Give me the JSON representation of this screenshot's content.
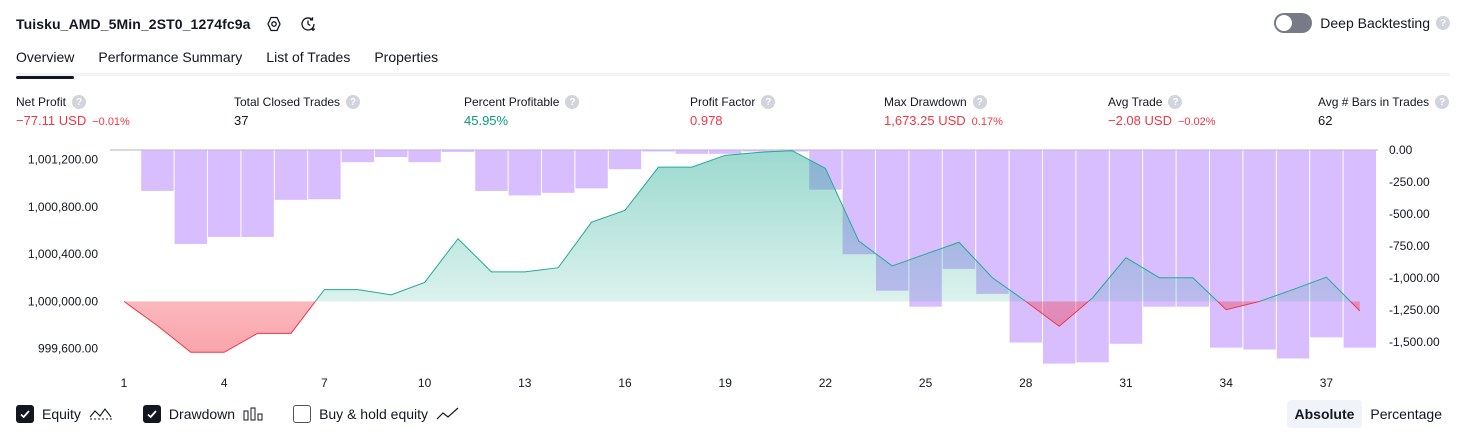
{
  "header": {
    "strategy_name": "Tuisku_AMD_5Min_2ST0_1274fc9a",
    "deep_backtesting_label": "Deep Backtesting",
    "help_glyph": "?"
  },
  "tabs": [
    {
      "label": "Overview",
      "active": true
    },
    {
      "label": "Performance Summary",
      "active": false
    },
    {
      "label": "List of Trades",
      "active": false
    },
    {
      "label": "Properties",
      "active": false
    }
  ],
  "metrics": [
    {
      "label": "Net Profit",
      "value": "−77.11 USD",
      "pct": "−0.01%",
      "tone": "neg"
    },
    {
      "label": "Total Closed Trades",
      "value": "37",
      "pct": "",
      "tone": "neutral"
    },
    {
      "label": "Percent Profitable",
      "value": "45.95%",
      "pct": "",
      "tone": "pos"
    },
    {
      "label": "Profit Factor",
      "value": "0.978",
      "pct": "",
      "tone": "neg"
    },
    {
      "label": "Max Drawdown",
      "value": "1,673.25 USD",
      "pct": "0.17%",
      "tone": "neg"
    },
    {
      "label": "Avg Trade",
      "value": "−2.08 USD",
      "pct": "−0.02%",
      "tone": "neg"
    },
    {
      "label": "Avg # Bars in Trades",
      "value": "62",
      "pct": "",
      "tone": "neutral"
    }
  ],
  "colors": {
    "profit_line": "#22ab94",
    "loss_line": "#f23645",
    "drawdown_bar": "#d1b3ff",
    "text_neg": "#f23645",
    "text_pos": "#089981"
  },
  "chart_data": {
    "type": "area",
    "x_ticks": [
      "1",
      "4",
      "7",
      "10",
      "13",
      "16",
      "19",
      "22",
      "25",
      "28",
      "31",
      "34",
      "37"
    ],
    "left_axis": {
      "ticks": [
        "1,001,200.00",
        "1,000,800.00",
        "1,000,400.00",
        "1,000,000.00",
        "999,600.00"
      ],
      "range": [
        999420,
        1001280
      ],
      "baseline": 1000000
    },
    "right_axis": {
      "ticks": [
        "0.00",
        "-250.00",
        "-500.00",
        "-750.00",
        "-1,000.00",
        "-1,250.00",
        "-1,500.00"
      ],
      "range": [
        -1720,
        0
      ]
    },
    "series": [
      {
        "name": "Equity",
        "axis": "left",
        "x": [
          1,
          2,
          3,
          4,
          5,
          6,
          7,
          8,
          9,
          10,
          11,
          12,
          13,
          14,
          15,
          16,
          17,
          18,
          19,
          20,
          21,
          22,
          23,
          24,
          25,
          26,
          27,
          28,
          29,
          30,
          31,
          32,
          33,
          34,
          35,
          36,
          37,
          38
        ],
        "values": [
          1000000,
          999795,
          999570,
          999570,
          999730,
          999730,
          1000100,
          1000100,
          1000055,
          1000160,
          1000530,
          1000250,
          1000250,
          1000285,
          1000670,
          1000770,
          1001135,
          1001135,
          1001235,
          1001260,
          1001275,
          1001125,
          1000510,
          1000300,
          1000400,
          1000500,
          1000200,
          1000000,
          999790,
          1000030,
          1000370,
          1000200,
          1000200,
          999930,
          1000000,
          1000100,
          1000205,
          999920
        ]
      },
      {
        "name": "Drawdown",
        "axis": "right",
        "x": [
          2,
          3,
          4,
          5,
          6,
          7,
          8,
          9,
          10,
          11,
          12,
          13,
          14,
          15,
          16,
          17,
          18,
          19,
          20,
          21,
          22,
          23,
          24,
          25,
          26,
          27,
          28,
          29,
          30,
          31,
          32,
          33,
          34,
          35,
          36,
          37,
          38
        ],
        "values": [
          -320,
          -735,
          -680,
          -680,
          -390,
          -385,
          -95,
          -55,
          -95,
          -15,
          -320,
          -355,
          -335,
          -300,
          -150,
          0,
          -30,
          -30,
          0,
          0,
          -310,
          -815,
          -1100,
          -1225,
          -930,
          -1125,
          -1505,
          -1670,
          -1660,
          -1515,
          -1225,
          -1225,
          -1545,
          -1560,
          -1630,
          -1465,
          -1545
        ]
      }
    ]
  },
  "legend": [
    {
      "label": "Equity",
      "checked": true,
      "glyph": "equity-line-icon"
    },
    {
      "label": "Drawdown",
      "checked": true,
      "glyph": "drawdown-bars-icon"
    },
    {
      "label": "Buy & hold equity",
      "checked": false,
      "glyph": "buy-hold-line-icon"
    }
  ],
  "mode_switch": {
    "options": [
      "Absolute",
      "Percentage"
    ],
    "selected": "Absolute"
  }
}
